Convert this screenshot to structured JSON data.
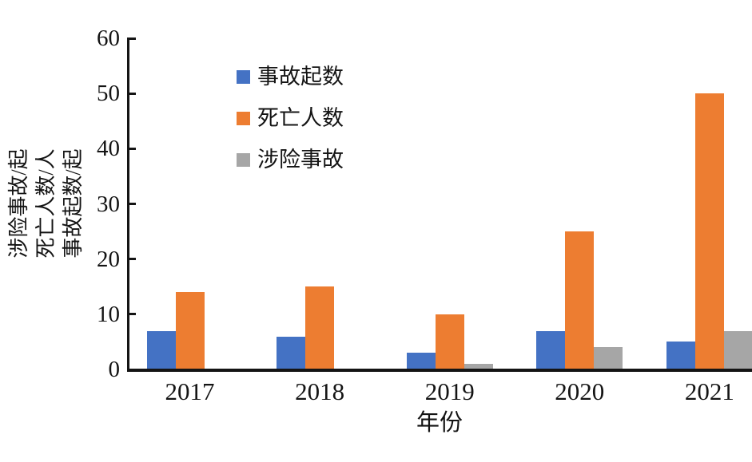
{
  "chart_data": {
    "type": "bar",
    "title": "",
    "categories": [
      "2017",
      "2018",
      "2019",
      "2020",
      "2021"
    ],
    "series": [
      {
        "name": "事故起数",
        "color": "#4472C4",
        "values": [
          7,
          6,
          3,
          7,
          5
        ]
      },
      {
        "name": "死亡人数",
        "color": "#ED7D31",
        "values": [
          14,
          15,
          10,
          25,
          50
        ]
      },
      {
        "name": "涉险事故",
        "color": "#A6A6A6",
        "values": [
          0,
          0,
          1,
          4,
          7
        ]
      }
    ],
    "xlabel": "年份",
    "ylabel_lines": [
      "涉险事故/起",
      "死亡人数/人",
      "事故起数/起"
    ],
    "ylim": [
      0,
      60
    ],
    "yticks": [
      0,
      10,
      20,
      30,
      40,
      50,
      60
    ],
    "grid": false,
    "legend_position": "upper-left-inside",
    "axis_color": "#141414",
    "background_color": "#ffffff"
  }
}
